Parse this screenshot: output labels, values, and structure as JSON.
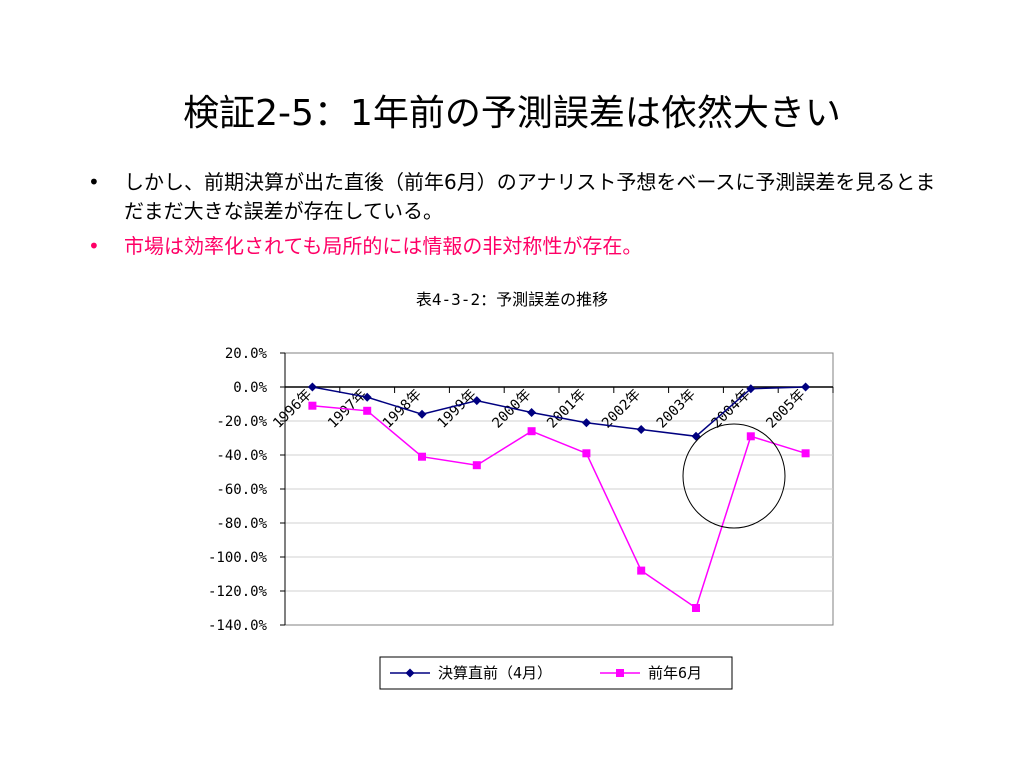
{
  "slide": {
    "title": "検証2-5：1年前の予測誤差は依然大きい",
    "bullets": [
      {
        "marker": "•",
        "text": "しかし、前期決算が出た直後（前年6月）のアナリスト予想をベースに予測誤差を見るとまだまだ大きな誤差が存在している。",
        "color": "#000000"
      },
      {
        "marker": "•",
        "text": "市場は効率化されても局所的には情報の非対称性が存在。",
        "color": "#ff0066"
      }
    ]
  },
  "chart_data": {
    "type": "line",
    "title": "表4-3-2：予測誤差の推移",
    "categories": [
      "1996年",
      "1997年",
      "1998年",
      "1999年",
      "2000年",
      "2001年",
      "2002年",
      "2003年",
      "2004年",
      "2005年"
    ],
    "y_ticks": [
      "20.0%",
      "0.0%",
      "-20.0%",
      "-40.0%",
      "-60.0%",
      "-80.0%",
      "-100.0%",
      "-120.0%",
      "-140.0%"
    ],
    "ylim": [
      -140,
      20
    ],
    "grid": true,
    "legend_position": "bottom",
    "series": [
      {
        "name": "決算直前（4月）",
        "color": "#000080",
        "marker": "diamond",
        "values": [
          0.0,
          -6.0,
          -16.0,
          -8.0,
          -15.0,
          -21.0,
          -25.0,
          -29.0,
          -1.0,
          0.0
        ]
      },
      {
        "name": "前年6月",
        "color": "#ff00ff",
        "marker": "square",
        "values": [
          -11.0,
          -14.0,
          -41.0,
          -46.0,
          -26.0,
          -39.0,
          -108.0,
          -130.0,
          -29.0,
          -39.0
        ]
      }
    ]
  }
}
